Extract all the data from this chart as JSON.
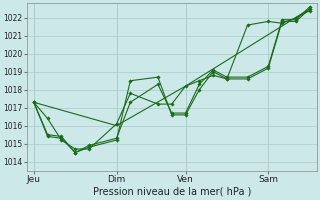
{
  "xlabel": "Pression niveau de la mer( hPa )",
  "bg_color": "#cce8e8",
  "grid_color": "#aacccc",
  "line_color": "#1a6b1a",
  "ylim": [
    1013.5,
    1022.8
  ],
  "yticks": [
    1014,
    1015,
    1016,
    1017,
    1018,
    1019,
    1020,
    1021,
    1022
  ],
  "xtick_labels": [
    "Jeu",
    "Dim",
    "Ven",
    "Sam"
  ],
  "figsize": [
    3.2,
    2.0
  ],
  "dpi": 100,
  "series": [
    {
      "x": [
        0,
        1,
        2,
        3,
        4,
        6,
        7,
        9,
        10,
        11,
        12,
        13,
        14,
        15.5,
        17,
        18,
        19,
        20
      ],
      "y": [
        1017.3,
        1016.4,
        1015.2,
        1014.7,
        1014.7,
        1016.1,
        1017.8,
        1017.2,
        1017.2,
        1018.2,
        1018.5,
        1018.8,
        1018.6,
        1021.6,
        1021.8,
        1021.7,
        1022.0,
        1022.4
      ],
      "marker": true
    },
    {
      "x": [
        0,
        1,
        2,
        3,
        4,
        6,
        7,
        9,
        10,
        11,
        12,
        13,
        14,
        15.5,
        17,
        18,
        19,
        20
      ],
      "y": [
        1017.3,
        1015.4,
        1015.3,
        1014.5,
        1014.8,
        1015.2,
        1018.5,
        1018.7,
        1016.6,
        1016.6,
        1018.0,
        1019.0,
        1018.6,
        1018.6,
        1019.2,
        1021.8,
        1021.8,
        1022.5
      ],
      "marker": true
    },
    {
      "x": [
        0,
        1,
        2,
        3,
        4,
        6,
        7,
        9,
        10,
        11,
        12,
        13,
        14,
        15.5,
        17,
        18,
        19,
        20
      ],
      "y": [
        1017.3,
        1015.5,
        1015.4,
        1014.5,
        1014.9,
        1015.3,
        1017.3,
        1018.3,
        1016.7,
        1016.7,
        1018.3,
        1019.1,
        1018.7,
        1018.7,
        1019.3,
        1021.9,
        1021.9,
        1022.6
      ],
      "marker": true
    },
    {
      "x": [
        0,
        6,
        11,
        20
      ],
      "y": [
        1017.3,
        1016.0,
        1018.2,
        1022.5
      ],
      "marker": false
    }
  ],
  "xtick_x_positions": [
    0,
    6,
    11,
    17
  ],
  "xlim": [
    -0.5,
    20.5
  ]
}
